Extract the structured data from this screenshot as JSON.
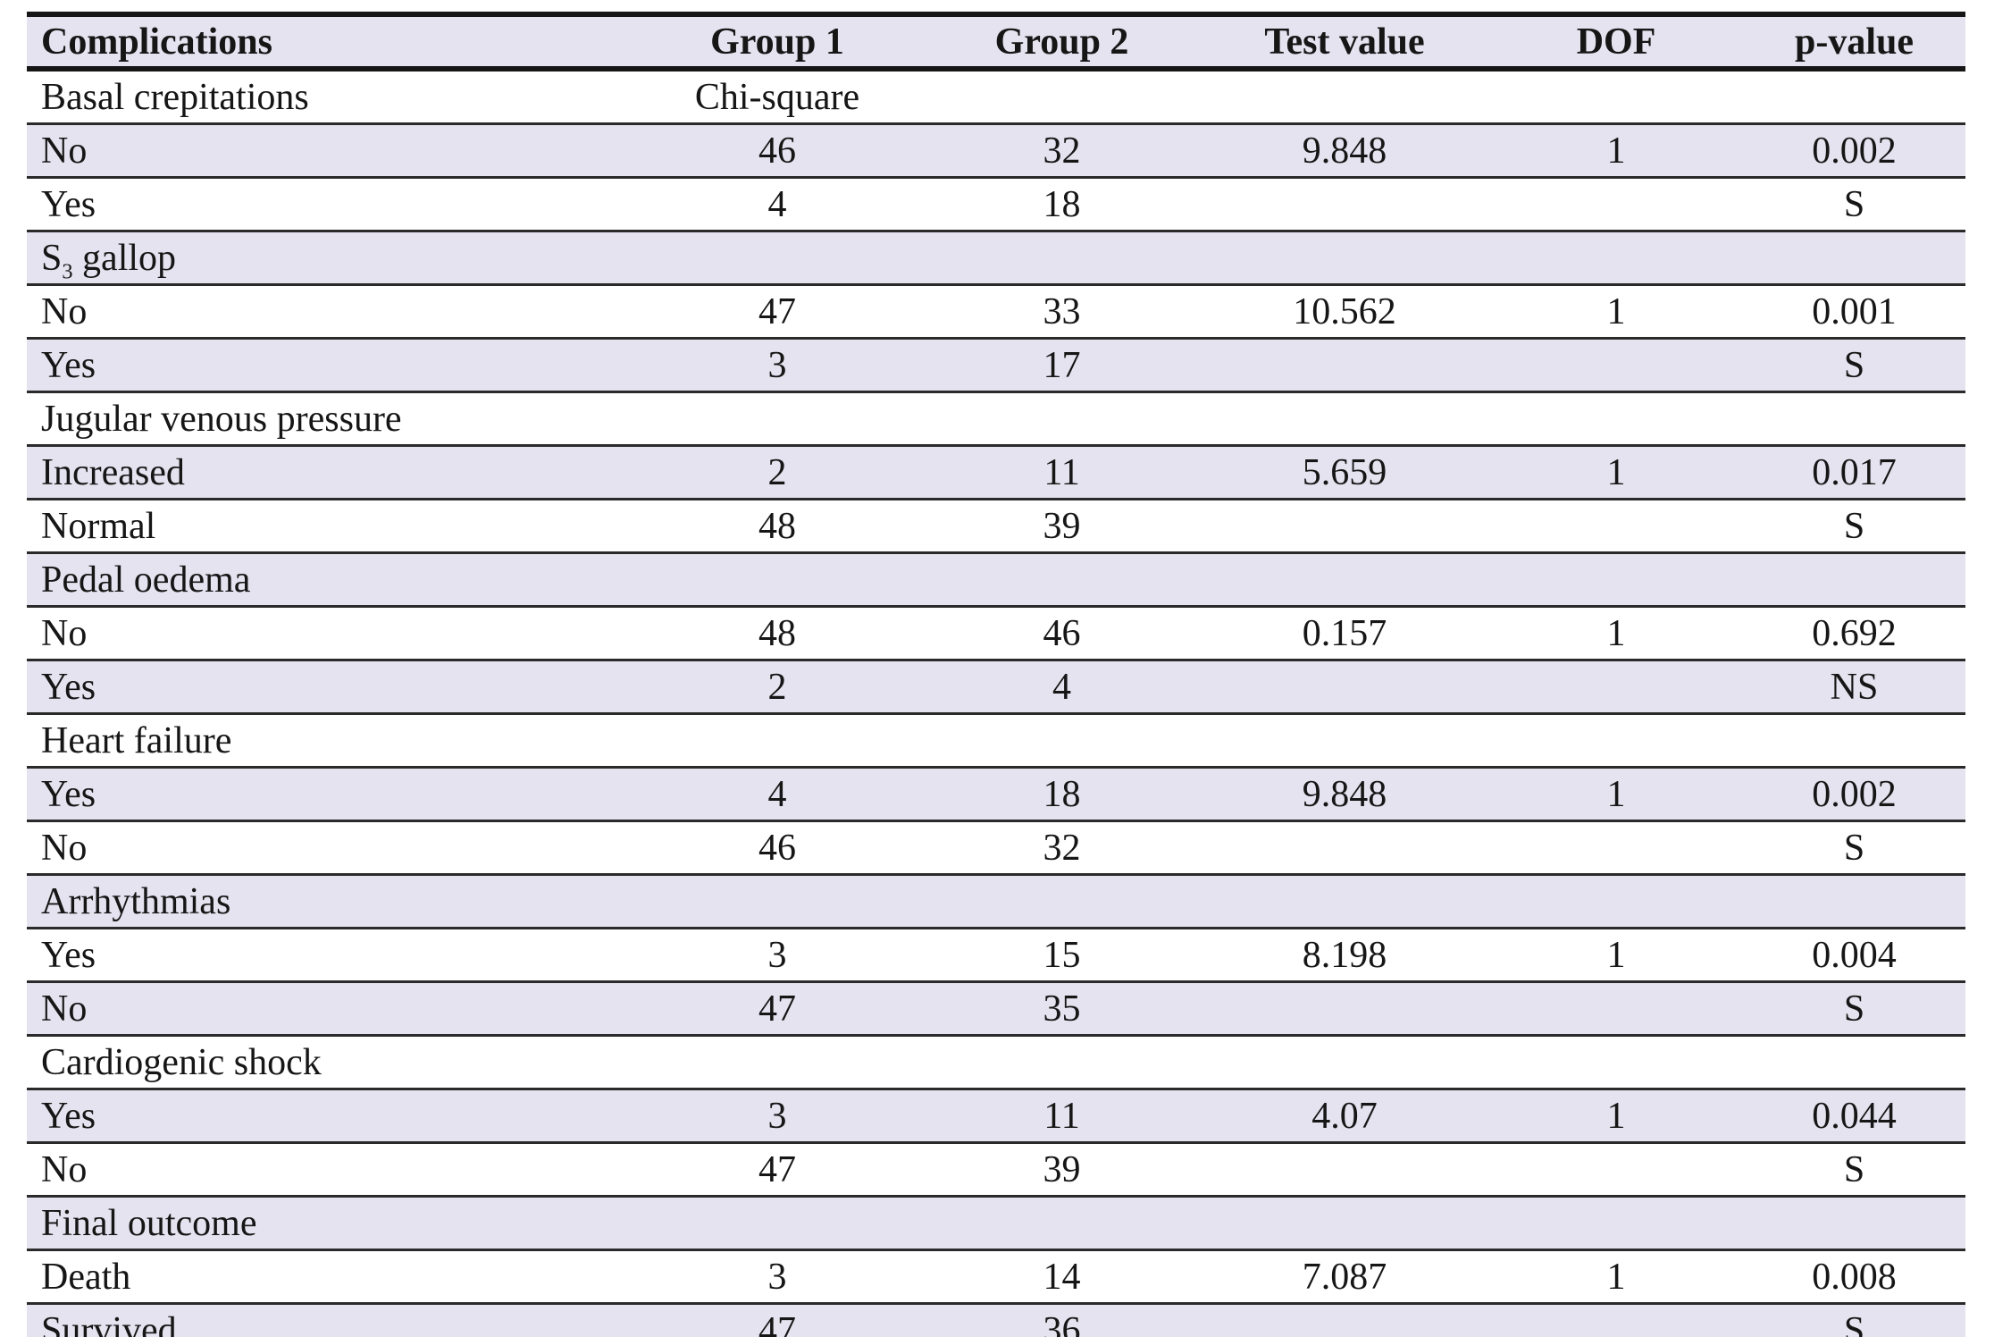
{
  "table": {
    "columns": [
      {
        "label": "Complications"
      },
      {
        "label": "Group 1"
      },
      {
        "label": "Group 2"
      },
      {
        "label": "Test value"
      },
      {
        "label": "DOF"
      },
      {
        "label": "p-value"
      }
    ],
    "rows": [
      {
        "cells": [
          "Basal crepitations",
          "Chi-square",
          "",
          "",
          "",
          ""
        ]
      },
      {
        "cells": [
          "No",
          "46",
          "32",
          "9.848",
          "1",
          "0.002"
        ]
      },
      {
        "cells": [
          "Yes",
          "4",
          "18",
          "",
          "",
          "S"
        ]
      },
      {
        "cells": [
          "S~3~ gallop",
          "",
          "",
          "",
          "",
          ""
        ]
      },
      {
        "cells": [
          "No",
          "47",
          "33",
          "10.562",
          "1",
          "0.001"
        ]
      },
      {
        "cells": [
          "Yes",
          "3",
          "17",
          "",
          "",
          "S"
        ]
      },
      {
        "cells": [
          "Jugular venous pressure",
          "",
          "",
          "",
          "",
          ""
        ]
      },
      {
        "cells": [
          "Increased",
          "2",
          "11",
          "5.659",
          "1",
          "0.017"
        ]
      },
      {
        "cells": [
          "Normal",
          "48",
          "39",
          "",
          "",
          "S"
        ]
      },
      {
        "cells": [
          "Pedal oedema",
          "",
          "",
          "",
          "",
          ""
        ]
      },
      {
        "cells": [
          "No",
          "48",
          "46",
          "0.157",
          "1",
          "0.692"
        ]
      },
      {
        "cells": [
          "Yes",
          "2",
          "4",
          "",
          "",
          "NS"
        ]
      },
      {
        "cells": [
          "Heart failure",
          "",
          "",
          "",
          "",
          ""
        ]
      },
      {
        "cells": [
          "Yes",
          "4",
          "18",
          "9.848",
          "1",
          "0.002"
        ]
      },
      {
        "cells": [
          "No",
          "46",
          "32",
          "",
          "",
          "S"
        ]
      },
      {
        "cells": [
          "Arrhythmias",
          "",
          "",
          "",
          "",
          ""
        ]
      },
      {
        "cells": [
          "Yes",
          "3",
          "15",
          "8.198",
          "1",
          "0.004"
        ]
      },
      {
        "cells": [
          "No",
          "47",
          "35",
          "",
          "",
          "S"
        ]
      },
      {
        "cells": [
          "Cardiogenic shock",
          "",
          "",
          "",
          "",
          ""
        ]
      },
      {
        "cells": [
          "Yes",
          "3",
          "11",
          "4.07",
          "1",
          "0.044"
        ]
      },
      {
        "cells": [
          "No",
          "47",
          "39",
          "",
          "",
          "S"
        ]
      },
      {
        "cells": [
          "Final outcome",
          "",
          "",
          "",
          "",
          ""
        ]
      },
      {
        "cells": [
          "Death",
          "3",
          "14",
          "7.087",
          "1",
          "0.008"
        ]
      },
      {
        "cells": [
          "Survived",
          "47",
          "36",
          "",
          "",
          "S"
        ]
      }
    ],
    "colors": {
      "shaded_row": "#e4e3ef",
      "plain_row": "#ffffff",
      "border_thick": "#161616",
      "border_thin": "#2a2a2a",
      "text": "#161616"
    }
  }
}
